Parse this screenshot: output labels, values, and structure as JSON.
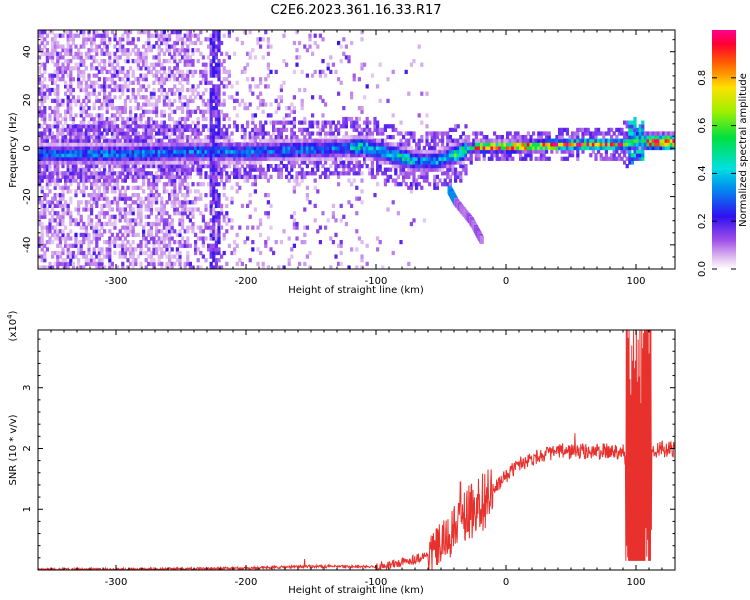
{
  "title": "C2E6.2023.361.16.33.R17",
  "colors": {
    "snr_line": "#e8302c",
    "frame": "#000000",
    "background": "#ffffff"
  },
  "chart_data": [
    {
      "type": "heatmap",
      "xlabel": "Height of straight line (km)",
      "ylabel": "Frequency (Hz)",
      "xlim": [
        -360,
        130
      ],
      "ylim": [
        -50,
        49
      ],
      "xticks": [
        -300,
        -200,
        -100,
        0,
        100
      ],
      "yticks": [
        -40,
        -20,
        0,
        20,
        40
      ],
      "colorbar": {
        "label": "Normalized spectral amplitude",
        "range": [
          0,
          1
        ],
        "ticks": [
          "0.0",
          "0.2",
          "0.4",
          "0.6",
          "0.8"
        ],
        "colormap": "rainbow (white-violet-blue-cyan-green-yellow-orange-red-magenta)"
      },
      "features": {
        "main_band_center_hz": [
          [
            -350,
            -3
          ],
          [
            -300,
            -3
          ],
          [
            -250,
            -2
          ],
          [
            -200,
            -2
          ],
          [
            -150,
            -1
          ],
          [
            -110,
            0
          ],
          [
            -90,
            -3
          ],
          [
            -70,
            -6
          ],
          [
            -55,
            -6
          ],
          [
            -40,
            -3
          ],
          [
            -25,
            0
          ],
          [
            0,
            0
          ],
          [
            50,
            1
          ],
          [
            90,
            1
          ],
          [
            100,
            3
          ],
          [
            110,
            2
          ],
          [
            130,
            2
          ]
        ],
        "vertical_streak_x": -225,
        "secondary_branch": [
          [
            -45,
            -17
          ],
          [
            -40,
            -22
          ],
          [
            -28,
            -30
          ],
          [
            -20,
            -38
          ]
        ]
      }
    },
    {
      "type": "line",
      "xlabel": "Height of straight line (km)",
      "ylabel": "SNR (10 * v/v)",
      "y_multiplier_label": "(x10",
      "y_multiplier_exp": "4",
      "xlim": [
        -360,
        130
      ],
      "ylim": [
        0,
        3.95
      ],
      "xticks": [
        -300,
        -200,
        -100,
        0,
        100
      ],
      "yticks": [
        1,
        2,
        3
      ],
      "series": [
        {
          "envelope": [
            [
              -360,
              0.01
            ],
            [
              -300,
              0.01
            ],
            [
              -250,
              0.02
            ],
            [
              -200,
              0.03
            ],
            [
              -150,
              0.06
            ],
            [
              -100,
              0.05
            ],
            [
              -80,
              0.12
            ],
            [
              -60,
              0.25
            ],
            [
              -45,
              0.5
            ],
            [
              -35,
              0.8
            ],
            [
              -25,
              1.0
            ],
            [
              -10,
              1.3
            ],
            [
              0,
              1.55
            ],
            [
              10,
              1.75
            ],
            [
              25,
              1.88
            ],
            [
              40,
              1.95
            ],
            [
              60,
              1.95
            ],
            [
              80,
              1.95
            ],
            [
              90,
              1.97
            ],
            [
              95,
              1.5
            ],
            [
              100,
              1.5
            ],
            [
              105,
              1.7
            ],
            [
              110,
              2.0
            ],
            [
              120,
              1.98
            ],
            [
              130,
              1.97
            ]
          ],
          "peaks": [
            [
              -155,
              0.18
            ],
            [
              -35,
              1.45
            ],
            [
              -22,
              1.25
            ],
            [
              53,
              2.25
            ],
            [
              100,
              3.4
            ],
            [
              103,
              3.65
            ],
            [
              105,
              3.9
            ],
            [
              108,
              3.5
            ]
          ]
        }
      ]
    }
  ]
}
